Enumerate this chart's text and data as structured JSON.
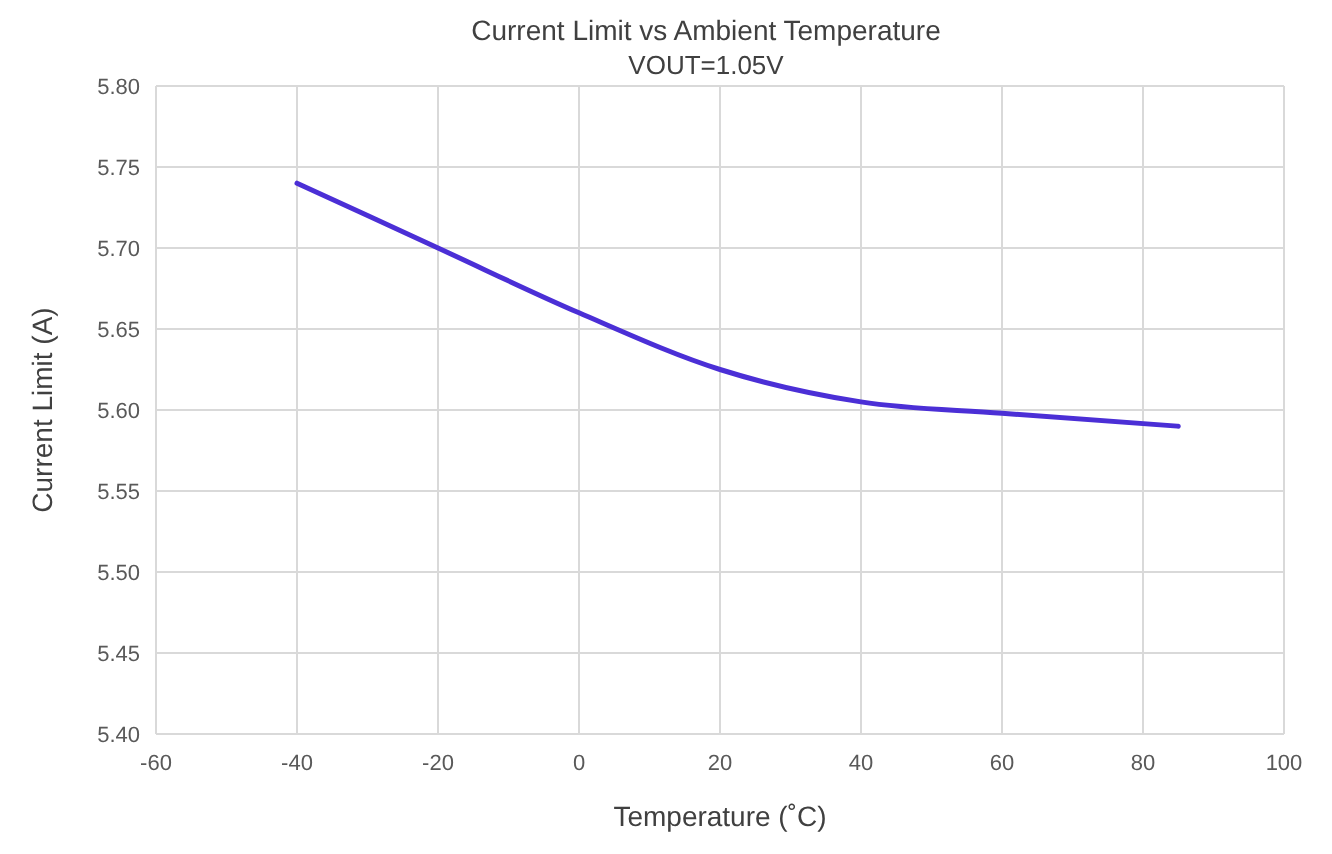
{
  "chart_data": {
    "type": "line",
    "title": "Current Limit vs Ambient Temperature",
    "subtitle": "VOUT=1.05V",
    "xlabel": "Temperature (˚C)",
    "ylabel": "Current Limit (A)",
    "x": [
      -40,
      -20,
      0,
      20,
      40,
      60,
      85
    ],
    "series": [
      {
        "color": "#4b2fd6",
        "values": [
          5.74,
          5.7,
          5.66,
          5.625,
          5.605,
          5.598,
          5.59
        ]
      }
    ],
    "xlim": [
      -60,
      100
    ],
    "xticks": [
      -60,
      -40,
      -20,
      0,
      20,
      40,
      60,
      80,
      100
    ],
    "ylim": [
      5.4,
      5.8
    ],
    "yticks": [
      {
        "value": 5.4,
        "label": "5.40"
      },
      {
        "value": 5.45,
        "label": "5.45"
      },
      {
        "value": 5.5,
        "label": "5.50"
      },
      {
        "value": 5.55,
        "label": "5.55"
      },
      {
        "value": 5.6,
        "label": "5.60"
      },
      {
        "value": 5.65,
        "label": "5.65"
      },
      {
        "value": 5.7,
        "label": "5.70"
      },
      {
        "value": 5.75,
        "label": "5.75"
      },
      {
        "value": 5.8,
        "label": "5.80"
      }
    ],
    "grid": true,
    "marker": "none",
    "line_style": "solid"
  }
}
